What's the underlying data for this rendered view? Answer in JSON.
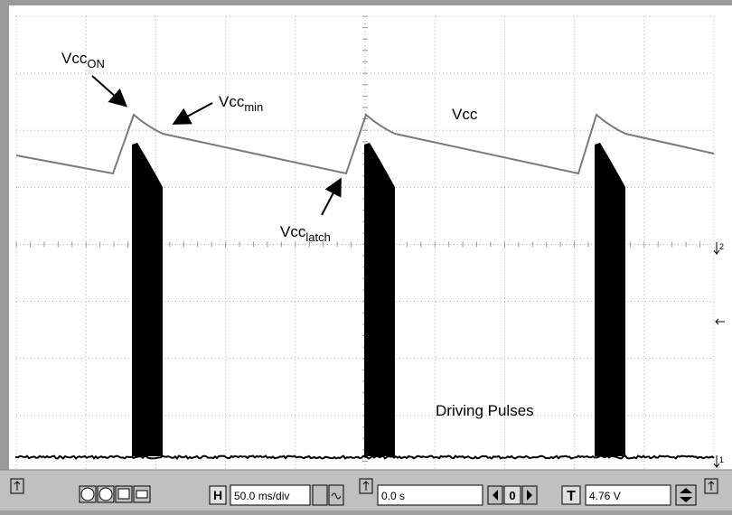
{
  "annotations": {
    "vcc_on": {
      "base": "Vcc",
      "sub": "ON"
    },
    "vcc_min": {
      "base": "Vcc",
      "sub": "min"
    },
    "vcc_latch": {
      "base": "Vcc",
      "sub": "latch"
    }
  },
  "labels": {
    "vcc": "Vcc",
    "pulses": "Driving Pulses"
  },
  "channel_markers": [
    "2",
    "1"
  ],
  "toolbar": {
    "h_button": "H",
    "timebase": "50.0 ms/div",
    "position": "0.0 s",
    "nav_center": "0",
    "trigger_button": "T",
    "trigger_level": "4.76 V"
  }
}
